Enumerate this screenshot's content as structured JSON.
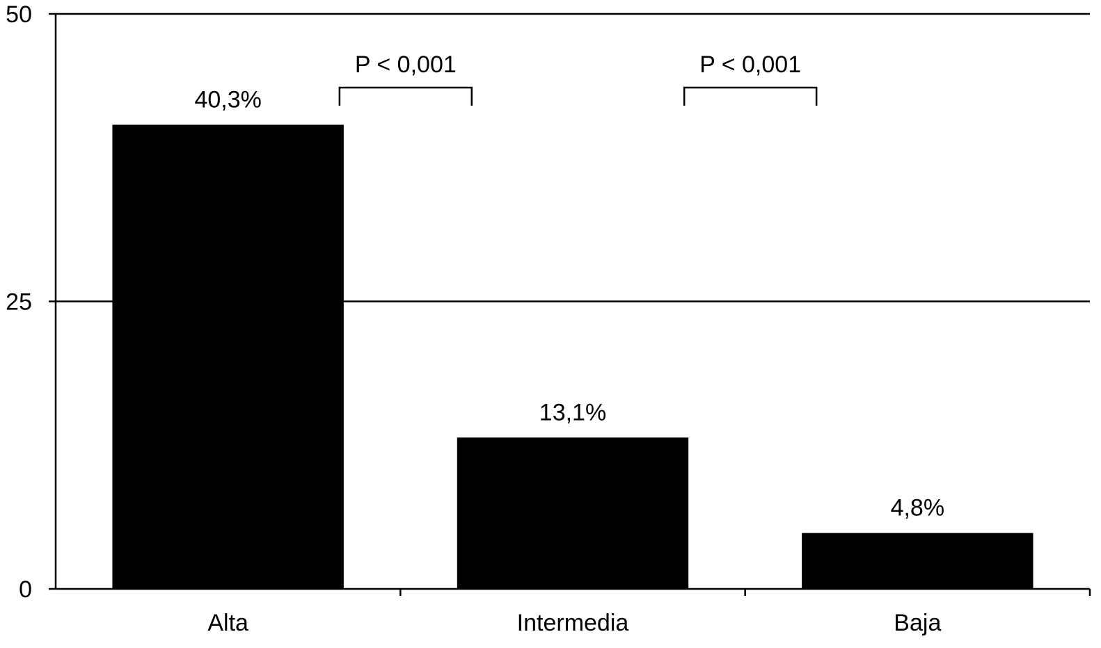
{
  "chart_data": {
    "type": "bar",
    "title": "",
    "xlabel": "",
    "ylabel": "",
    "categories": [
      "Alta",
      "Intermedia",
      "Baja"
    ],
    "values": [
      40.3,
      13.1,
      4.8
    ],
    "data_labels": [
      "40,3%",
      "13,1%",
      "4,8%"
    ],
    "ylim": [
      0,
      50
    ],
    "yticks": [
      0,
      25,
      50
    ],
    "ytick_labels": [
      "0",
      "25",
      "50"
    ],
    "grid": "horizontal",
    "legend": "none",
    "bar_color": "#000000",
    "annotations": [
      {
        "text": "P < 0,001",
        "from": "Alta",
        "to": "Intermedia"
      },
      {
        "text": "P < 0,001",
        "from": "Intermedia",
        "to": "Baja"
      }
    ]
  }
}
